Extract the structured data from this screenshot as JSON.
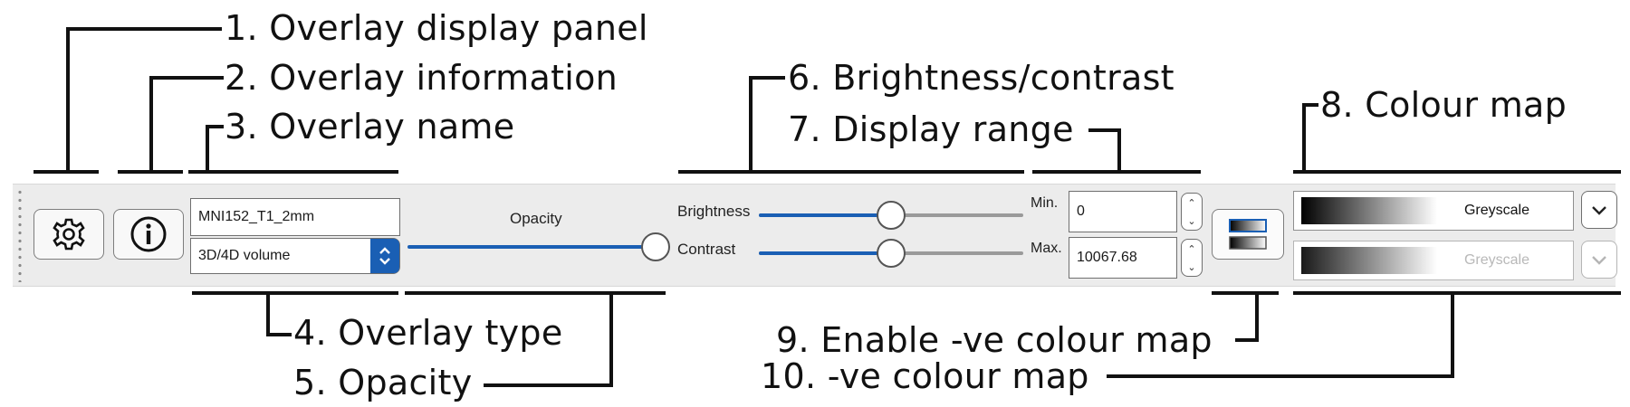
{
  "callouts": {
    "c1": "1. Overlay display panel",
    "c2": "2. Overlay information",
    "c3": "3. Overlay name",
    "c4": "4. Overlay type",
    "c5": "5. Opacity",
    "c6": "6. Brightness/contrast",
    "c7": "7. Display range",
    "c8": "8. Colour map",
    "c9": "9. Enable -ve colour map",
    "c10": "10. -ve colour map"
  },
  "toolbar": {
    "overlay_name": "MNI152_T1_2mm",
    "overlay_type": "3D/4D volume",
    "opacity_label": "Opacity",
    "opacity_value": 1.0,
    "brightness_label": "Brightness",
    "brightness_value": 0.5,
    "contrast_label": "Contrast",
    "contrast_value": 0.5,
    "min_label": "Min.",
    "min_value": "0",
    "max_label": "Max.",
    "max_value": "10067.68",
    "colour_map": "Greyscale",
    "neg_colour_map": "Greyscale"
  },
  "icons": {
    "settings": "gear-icon",
    "info": "info-icon",
    "type_stepper": "chevron-updown-icon",
    "range_stepper": "chevron-updown-icon",
    "neg_toggle": "colour-map-toggle-icon",
    "dropdown": "chevron-down-icon"
  },
  "colors": {
    "accent": "#1a5fb4",
    "track": "#9a9a9a",
    "disabled_text": "#b8b8b8"
  }
}
